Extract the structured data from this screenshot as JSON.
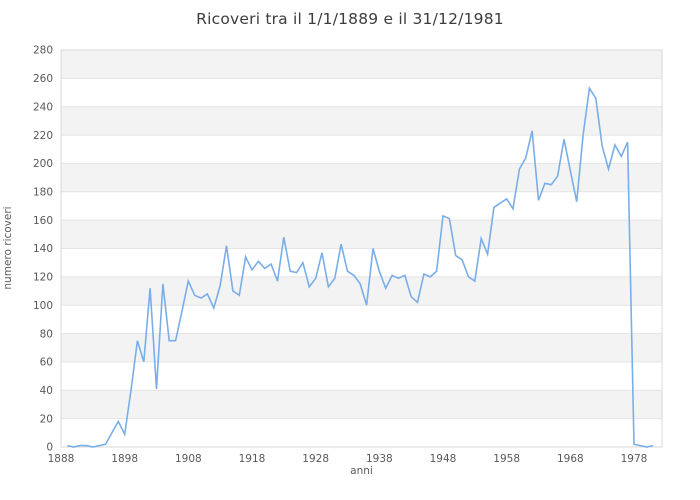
{
  "chart_data": {
    "type": "line",
    "title": "Ricoveri tra il 1/1/1889 e il 31/12/1981",
    "xlabel": "anni",
    "ylabel": "numero ricoveri",
    "xlim": [
      1888,
      1982.4
    ],
    "ylim": [
      0,
      280
    ],
    "xticks": [
      1888,
      1898,
      1908,
      1918,
      1928,
      1938,
      1948,
      1958,
      1968,
      1978
    ],
    "yticks": [
      0,
      20,
      40,
      60,
      80,
      100,
      120,
      140,
      160,
      180,
      200,
      220,
      240,
      260,
      280
    ],
    "legend_position": "none",
    "grid": "horizontal-bands-and-lines",
    "colors": {
      "line": "#79aee9",
      "band": "#f3f3f3",
      "gridline": "#e4e4e4",
      "plot_border": "#d9d9d9",
      "tick_text": "#595959",
      "title_text": "#3d3d3d"
    },
    "x": [
      1889,
      1890,
      1891,
      1892,
      1893,
      1894,
      1895,
      1896,
      1897,
      1898,
      1899,
      1900,
      1901,
      1902,
      1903,
      1904,
      1905,
      1906,
      1907,
      1908,
      1909,
      1910,
      1911,
      1912,
      1913,
      1914,
      1915,
      1916,
      1917,
      1918,
      1919,
      1920,
      1921,
      1922,
      1923,
      1924,
      1925,
      1926,
      1927,
      1928,
      1929,
      1930,
      1931,
      1932,
      1933,
      1934,
      1935,
      1936,
      1937,
      1938,
      1939,
      1940,
      1941,
      1942,
      1943,
      1944,
      1945,
      1946,
      1947,
      1948,
      1949,
      1950,
      1951,
      1952,
      1953,
      1954,
      1955,
      1956,
      1957,
      1958,
      1959,
      1960,
      1961,
      1962,
      1963,
      1964,
      1965,
      1966,
      1967,
      1968,
      1969,
      1970,
      1971,
      1972,
      1973,
      1974,
      1975,
      1976,
      1977,
      1978,
      1979,
      1980,
      1981
    ],
    "values": [
      1,
      0,
      1,
      1,
      0,
      1,
      2,
      10,
      18,
      9,
      40,
      75,
      60,
      112,
      41,
      115,
      75,
      75,
      96,
      117,
      107,
      105,
      108,
      98,
      114,
      142,
      110,
      107,
      134,
      125,
      131,
      126,
      129,
      117,
      148,
      124,
      123,
      130,
      113,
      119,
      137,
      113,
      119,
      143,
      124,
      121,
      115,
      100,
      140,
      124,
      112,
      121,
      119,
      121,
      106,
      102,
      122,
      120,
      124,
      163,
      161,
      135,
      132,
      120,
      117,
      147,
      136,
      169,
      172,
      175,
      168,
      196,
      204,
      223,
      174,
      186,
      185,
      191,
      217,
      195,
      173,
      220,
      253,
      246,
      212,
      196,
      213,
      205,
      215,
      2,
      1,
      0,
      1
    ]
  }
}
